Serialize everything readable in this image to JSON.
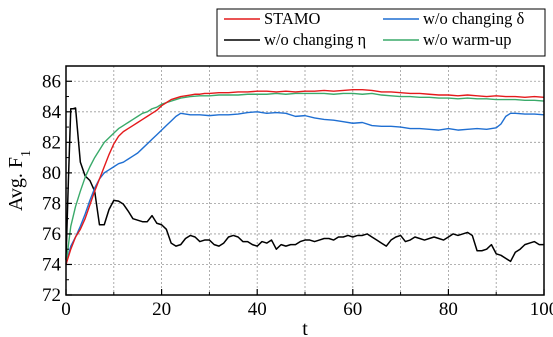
{
  "chart_data": {
    "type": "line",
    "xlabel": "t",
    "ylabel_main": "Avg. F",
    "ylabel_sub": "1",
    "xlim": [
      0,
      100
    ],
    "ylim": [
      72,
      87
    ],
    "xticks": [
      "0",
      "20",
      "40",
      "60",
      "80",
      "100"
    ],
    "yticks": [
      "72",
      "74",
      "76",
      "78",
      "80",
      "82",
      "84",
      "86"
    ],
    "grid": true,
    "legend_position": "top-right",
    "series": [
      {
        "name": "STAMO",
        "color": "#e41a1c",
        "x": [
          0,
          1,
          2,
          3,
          4,
          5,
          6,
          7,
          8,
          9,
          10,
          11,
          12,
          13,
          14,
          15,
          16,
          17,
          18,
          19,
          20,
          21,
          22,
          23,
          24,
          25,
          26,
          27,
          28,
          29,
          30,
          32,
          34,
          36,
          38,
          40,
          42,
          44,
          46,
          48,
          50,
          52,
          54,
          56,
          58,
          60,
          62,
          64,
          66,
          68,
          70,
          72,
          74,
          76,
          78,
          80,
          82,
          84,
          86,
          88,
          90,
          92,
          94,
          96,
          98,
          100
        ],
        "y": [
          74.0,
          75.0,
          75.8,
          76.3,
          77.0,
          77.9,
          78.8,
          79.6,
          80.4,
          81.2,
          81.9,
          82.4,
          82.7,
          82.9,
          83.1,
          83.3,
          83.5,
          83.7,
          83.9,
          84.1,
          84.4,
          84.6,
          84.8,
          84.9,
          85.0,
          85.05,
          85.1,
          85.15,
          85.15,
          85.2,
          85.2,
          85.25,
          85.25,
          85.3,
          85.3,
          85.35,
          85.35,
          85.3,
          85.35,
          85.3,
          85.35,
          85.35,
          85.4,
          85.35,
          85.4,
          85.45,
          85.45,
          85.4,
          85.3,
          85.3,
          85.25,
          85.2,
          85.2,
          85.15,
          85.1,
          85.1,
          85.05,
          85.1,
          85.05,
          85.0,
          85.05,
          85.0,
          85.0,
          84.95,
          85.0,
          84.95
        ]
      },
      {
        "name": "w/o changing δ",
        "color": "#1f6fd2",
        "x": [
          0,
          1,
          2,
          3,
          4,
          5,
          6,
          7,
          8,
          9,
          10,
          11,
          12,
          13,
          14,
          15,
          16,
          17,
          18,
          19,
          20,
          21,
          22,
          23,
          24,
          25,
          26,
          28,
          30,
          32,
          34,
          36,
          38,
          40,
          42,
          44,
          46,
          48,
          50,
          52,
          54,
          56,
          58,
          60,
          62,
          64,
          66,
          68,
          70,
          72,
          74,
          76,
          78,
          80,
          82,
          84,
          86,
          88,
          90,
          91,
          92,
          93,
          94,
          96,
          98,
          100
        ],
        "y": [
          74.0,
          75.2,
          75.8,
          76.5,
          77.3,
          78.2,
          79.0,
          79.6,
          80.0,
          80.2,
          80.4,
          80.6,
          80.7,
          80.9,
          81.1,
          81.3,
          81.6,
          81.9,
          82.2,
          82.5,
          82.8,
          83.1,
          83.4,
          83.7,
          83.9,
          83.85,
          83.8,
          83.8,
          83.75,
          83.8,
          83.8,
          83.85,
          83.95,
          84.0,
          83.9,
          83.95,
          83.9,
          83.7,
          83.75,
          83.6,
          83.5,
          83.45,
          83.35,
          83.25,
          83.3,
          83.1,
          83.05,
          83.05,
          83.0,
          82.9,
          82.9,
          82.85,
          82.8,
          82.9,
          82.8,
          82.85,
          82.9,
          82.85,
          82.95,
          83.2,
          83.7,
          83.9,
          83.9,
          83.85,
          83.85,
          83.8
        ]
      },
      {
        "name": "w/o changing η",
        "color": "#000000",
        "x": [
          0,
          0.5,
          1,
          1.5,
          2,
          3,
          4,
          5,
          6,
          7,
          8,
          9,
          10,
          11,
          12,
          13,
          14,
          15,
          16,
          17,
          18,
          19,
          20,
          21,
          22,
          23,
          24,
          25,
          26,
          27,
          28,
          29,
          30,
          31,
          32,
          33,
          34,
          35,
          36,
          37,
          38,
          39,
          40,
          41,
          42,
          43,
          44,
          45,
          46,
          47,
          48,
          49,
          50,
          51,
          52,
          53,
          54,
          55,
          56,
          57,
          58,
          59,
          60,
          61,
          62,
          63,
          64,
          65,
          66,
          67,
          68,
          69,
          70,
          71,
          72,
          73,
          74,
          75,
          76,
          77,
          78,
          79,
          80,
          81,
          82,
          83,
          84,
          85,
          86,
          87,
          88,
          89,
          90,
          91,
          92,
          93,
          94,
          95,
          96,
          97,
          98,
          99,
          100
        ],
        "y": [
          74.3,
          79.5,
          84.2,
          84.2,
          84.25,
          80.7,
          79.8,
          79.5,
          78.8,
          76.6,
          76.6,
          77.6,
          78.2,
          78.15,
          77.95,
          77.5,
          77.0,
          76.9,
          76.8,
          76.8,
          77.2,
          76.7,
          76.6,
          76.3,
          75.4,
          75.2,
          75.3,
          75.7,
          75.9,
          75.8,
          75.5,
          75.6,
          75.6,
          75.3,
          75.2,
          75.4,
          75.8,
          75.9,
          75.8,
          75.5,
          75.5,
          75.3,
          75.2,
          75.5,
          75.4,
          75.6,
          75.0,
          75.3,
          75.2,
          75.3,
          75.3,
          75.5,
          75.6,
          75.6,
          75.5,
          75.6,
          75.7,
          75.7,
          75.6,
          75.8,
          75.8,
          75.9,
          75.8,
          75.9,
          75.9,
          76.0,
          75.8,
          75.6,
          75.4,
          75.2,
          75.6,
          75.8,
          75.9,
          75.5,
          75.6,
          75.8,
          75.7,
          75.6,
          75.7,
          75.8,
          75.7,
          75.6,
          75.8,
          76.0,
          75.9,
          76.0,
          76.1,
          75.9,
          74.9,
          74.9,
          75.0,
          75.3,
          74.7,
          74.6,
          74.4,
          74.2,
          74.8,
          75.0,
          75.3,
          75.4,
          75.5,
          75.3,
          75.3
        ]
      },
      {
        "name": "w/o warm-up",
        "color": "#3aaa6a",
        "x": [
          0,
          1,
          2,
          3,
          4,
          5,
          6,
          7,
          8,
          9,
          10,
          11,
          12,
          13,
          14,
          15,
          16,
          17,
          18,
          19,
          20,
          21,
          22,
          23,
          24,
          25,
          26,
          28,
          30,
          32,
          34,
          36,
          38,
          40,
          42,
          44,
          46,
          48,
          50,
          52,
          54,
          56,
          58,
          60,
          62,
          64,
          66,
          68,
          70,
          72,
          74,
          76,
          78,
          80,
          82,
          84,
          86,
          88,
          90,
          92,
          94,
          96,
          98,
          100
        ],
        "y": [
          74.0,
          76.5,
          77.8,
          78.8,
          79.7,
          80.4,
          81.0,
          81.5,
          82.0,
          82.3,
          82.6,
          82.9,
          83.1,
          83.3,
          83.5,
          83.7,
          83.9,
          84.0,
          84.2,
          84.3,
          84.5,
          84.6,
          84.7,
          84.8,
          84.9,
          84.95,
          85.0,
          85.05,
          85.05,
          85.1,
          85.1,
          85.1,
          85.15,
          85.15,
          85.15,
          85.2,
          85.15,
          85.2,
          85.2,
          85.2,
          85.2,
          85.15,
          85.2,
          85.2,
          85.15,
          85.2,
          85.1,
          85.05,
          85.0,
          85.0,
          84.95,
          84.95,
          84.9,
          84.9,
          84.85,
          84.9,
          84.85,
          84.85,
          84.8,
          84.8,
          84.8,
          84.75,
          84.75,
          84.7
        ]
      }
    ]
  }
}
